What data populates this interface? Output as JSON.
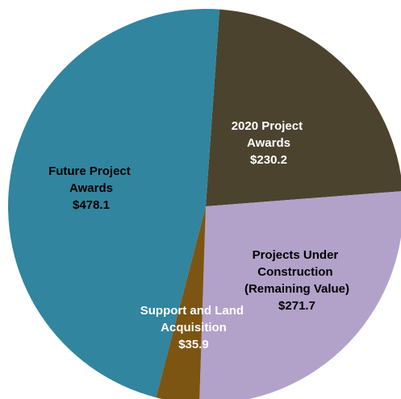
{
  "chart_data": {
    "type": "pie",
    "categories": [
      "2020 Project Awards",
      "Projects Under Construction (Remaining Value)",
      "Support and Land Acquisition",
      "Future Project Awards"
    ],
    "values": [
      230.2,
      271.7,
      35.9,
      478.1
    ],
    "value_labels": [
      "$230.2",
      "$271.7",
      "$35.9",
      "$478.1"
    ],
    "colors": [
      "#4b432e",
      "#b2a2c9",
      "#7d5512",
      "#31859f"
    ]
  }
}
